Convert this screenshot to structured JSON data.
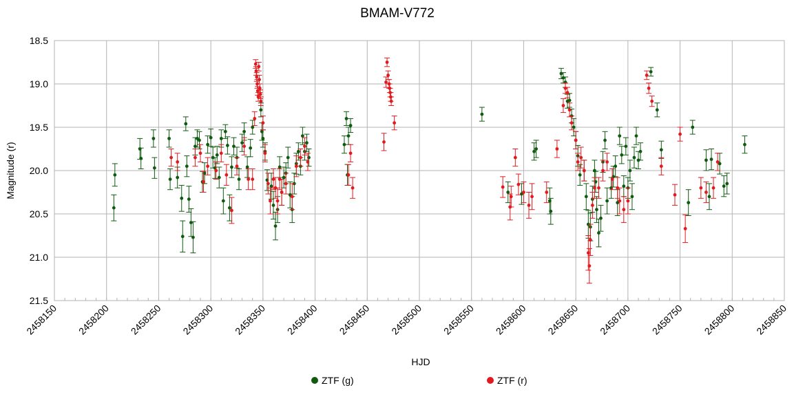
{
  "chart_data": {
    "type": "scatter",
    "title": "BMAM-V772",
    "xlabel": "HJD",
    "ylabel": "Magnitude (r)",
    "xlim": [
      2458150,
      2458850
    ],
    "ylim": [
      18.5,
      21.5
    ],
    "y_inverted": true,
    "grid": true,
    "legend_position": "bottom",
    "x_ticks": [
      "2458150",
      "2458200",
      "2458250",
      "2458300",
      "2458350",
      "2458400",
      "2458450",
      "2458500",
      "2458550",
      "2458600",
      "2458650",
      "2458700",
      "2458750",
      "2458800",
      "2458850"
    ],
    "y_ticks": [
      "18.5",
      "19.0",
      "19.5",
      "20.0",
      "20.5",
      "21.0",
      "21.5"
    ],
    "series": [
      {
        "name": "ZTF (g)",
        "color": "#0f5a0f",
        "points": [
          [
            2458207,
            20.43,
            0.15
          ],
          [
            2458208,
            20.05,
            0.13
          ],
          [
            2458232,
            19.75,
            0.12
          ],
          [
            2458233,
            19.86,
            0.12
          ],
          [
            2458245,
            19.63,
            0.1
          ],
          [
            2458246,
            19.97,
            0.12
          ],
          [
            2458260,
            19.63,
            0.1
          ],
          [
            2458261,
            20.1,
            0.12
          ],
          [
            2458268,
            20.08,
            0.12
          ],
          [
            2458272,
            20.32,
            0.15
          ],
          [
            2458273,
            20.76,
            0.18
          ],
          [
            2458276,
            19.46,
            0.08
          ],
          [
            2458277,
            19.95,
            0.12
          ],
          [
            2458279,
            20.33,
            0.15
          ],
          [
            2458281,
            20.6,
            0.16
          ],
          [
            2458283,
            20.77,
            0.18
          ],
          [
            2458285,
            19.72,
            0.1
          ],
          [
            2458287,
            19.63,
            0.1
          ],
          [
            2458289,
            19.65,
            0.1
          ],
          [
            2458292,
            20.13,
            0.12
          ],
          [
            2458294,
            20.03,
            0.12
          ],
          [
            2458297,
            19.7,
            0.1
          ],
          [
            2458300,
            19.62,
            0.1
          ],
          [
            2458302,
            19.85,
            0.12
          ],
          [
            2458304,
            19.97,
            0.12
          ],
          [
            2458306,
            19.82,
            0.1
          ],
          [
            2458308,
            20.08,
            0.12
          ],
          [
            2458310,
            19.63,
            0.1
          ],
          [
            2458312,
            20.35,
            0.15
          ],
          [
            2458314,
            19.55,
            0.08
          ],
          [
            2458316,
            19.71,
            0.1
          ],
          [
            2458318,
            20.43,
            0.15
          ],
          [
            2458320,
            19.96,
            0.12
          ],
          [
            2458322,
            19.72,
            0.1
          ],
          [
            2458325,
            19.85,
            0.12
          ],
          [
            2458327,
            20.1,
            0.12
          ],
          [
            2458330,
            19.68,
            0.1
          ],
          [
            2458332,
            19.55,
            0.1
          ],
          [
            2458335,
            19.96,
            0.12
          ],
          [
            2458338,
            19.74,
            0.1
          ],
          [
            2458340,
            19.5,
            0.08
          ],
          [
            2458348,
            19.3,
            0.08
          ],
          [
            2458349,
            19.55,
            0.1
          ],
          [
            2458350,
            19.63,
            0.1
          ],
          [
            2458352,
            19.78,
            0.1
          ],
          [
            2458354,
            20.11,
            0.12
          ],
          [
            2458358,
            20.18,
            0.15
          ],
          [
            2458360,
            20.4,
            0.16
          ],
          [
            2458362,
            20.64,
            0.16
          ],
          [
            2458364,
            20.45,
            0.15
          ],
          [
            2458366,
            19.96,
            0.12
          ],
          [
            2458368,
            20.25,
            0.15
          ],
          [
            2458370,
            20.08,
            0.12
          ],
          [
            2458372,
            20.03,
            0.12
          ],
          [
            2458374,
            19.85,
            0.12
          ],
          [
            2458376,
            20.28,
            0.15
          ],
          [
            2458378,
            20.45,
            0.15
          ],
          [
            2458380,
            20.15,
            0.12
          ],
          [
            2458382,
            19.92,
            0.12
          ],
          [
            2458384,
            19.78,
            0.1
          ],
          [
            2458386,
            19.95,
            0.1
          ],
          [
            2458388,
            19.6,
            0.1
          ],
          [
            2458390,
            19.78,
            0.1
          ],
          [
            2458392,
            19.68,
            0.1
          ],
          [
            2458394,
            19.85,
            0.1
          ],
          [
            2458428,
            19.7,
            0.1
          ],
          [
            2458430,
            19.4,
            0.08
          ],
          [
            2458431,
            20.05,
            0.12
          ],
          [
            2458432,
            19.6,
            0.1
          ],
          [
            2458434,
            19.48,
            0.08
          ],
          [
            2458560,
            19.35,
            0.08
          ],
          [
            2458585,
            20.25,
            0.12
          ],
          [
            2458598,
            20.27,
            0.12
          ],
          [
            2458610,
            19.78,
            0.1
          ],
          [
            2458612,
            19.75,
            0.1
          ],
          [
            2458625,
            20.35,
            0.15
          ],
          [
            2458626,
            20.47,
            0.15
          ],
          [
            2458636,
            18.88,
            0.06
          ],
          [
            2458638,
            18.93,
            0.06
          ],
          [
            2458640,
            18.98,
            0.06
          ],
          [
            2458642,
            19.2,
            0.08
          ],
          [
            2458644,
            19.19,
            0.08
          ],
          [
            2458646,
            19.37,
            0.08
          ],
          [
            2458648,
            19.5,
            0.1
          ],
          [
            2458650,
            19.65,
            0.1
          ],
          [
            2458652,
            19.83,
            0.12
          ],
          [
            2458654,
            20.05,
            0.12
          ],
          [
            2458658,
            20.0,
            0.12
          ],
          [
            2458660,
            20.3,
            0.15
          ],
          [
            2458662,
            20.62,
            0.16
          ],
          [
            2458664,
            20.65,
            0.16
          ],
          [
            2458666,
            20.33,
            0.15
          ],
          [
            2458668,
            20.0,
            0.12
          ],
          [
            2458669,
            20.13,
            0.12
          ],
          [
            2458670,
            20.45,
            0.15
          ],
          [
            2458672,
            20.72,
            0.16
          ],
          [
            2458674,
            20.55,
            0.15
          ],
          [
            2458676,
            19.9,
            0.12
          ],
          [
            2458678,
            19.65,
            0.1
          ],
          [
            2458680,
            20.35,
            0.15
          ],
          [
            2458684,
            20.2,
            0.12
          ],
          [
            2458686,
            20.07,
            0.12
          ],
          [
            2458688,
            19.95,
            0.12
          ],
          [
            2458690,
            20.37,
            0.15
          ],
          [
            2458692,
            19.6,
            0.1
          ],
          [
            2458694,
            19.82,
            0.1
          ],
          [
            2458696,
            20.18,
            0.12
          ],
          [
            2458698,
            19.72,
            0.1
          ],
          [
            2458700,
            20.2,
            0.12
          ],
          [
            2458702,
            20.0,
            0.12
          ],
          [
            2458704,
            20.3,
            0.15
          ],
          [
            2458706,
            19.85,
            0.12
          ],
          [
            2458708,
            19.6,
            0.1
          ],
          [
            2458710,
            19.88,
            0.1
          ],
          [
            2458712,
            19.78,
            0.1
          ],
          [
            2458722,
            18.86,
            0.05
          ],
          [
            2458728,
            19.3,
            0.08
          ],
          [
            2458732,
            19.76,
            0.1
          ],
          [
            2458758,
            20.37,
            0.15
          ],
          [
            2458762,
            19.5,
            0.08
          ],
          [
            2458775,
            19.88,
            0.12
          ],
          [
            2458778,
            20.3,
            0.15
          ],
          [
            2458780,
            19.87,
            0.12
          ],
          [
            2458788,
            19.92,
            0.12
          ],
          [
            2458792,
            20.18,
            0.12
          ],
          [
            2458795,
            20.15,
            0.12
          ],
          [
            2458812,
            19.7,
            0.1
          ]
        ]
      },
      {
        "name": "ZTF (r)",
        "color": "#e01a1f",
        "points": [
          [
            2458262,
            19.85,
            0.1
          ],
          [
            2458268,
            19.9,
            0.1
          ],
          [
            2458285,
            19.85,
            0.1
          ],
          [
            2458290,
            19.8,
            0.1
          ],
          [
            2458293,
            20.13,
            0.12
          ],
          [
            2458297,
            19.95,
            0.1
          ],
          [
            2458305,
            20.0,
            0.1
          ],
          [
            2458310,
            19.8,
            0.1
          ],
          [
            2458315,
            20.05,
            0.12
          ],
          [
            2458320,
            20.46,
            0.15
          ],
          [
            2458325,
            19.95,
            0.1
          ],
          [
            2458332,
            19.72,
            0.1
          ],
          [
            2458336,
            20.1,
            0.12
          ],
          [
            2458340,
            20.1,
            0.12
          ],
          [
            2458342,
            19.4,
            0.08
          ],
          [
            2458343,
            18.77,
            0.05
          ],
          [
            2458343.5,
            18.85,
            0.05
          ],
          [
            2458344,
            18.92,
            0.05
          ],
          [
            2458344.5,
            19.0,
            0.05
          ],
          [
            2458345,
            19.08,
            0.05
          ],
          [
            2458345.5,
            19.15,
            0.05
          ],
          [
            2458346,
            18.8,
            0.05
          ],
          [
            2458346.5,
            18.95,
            0.05
          ],
          [
            2458347,
            19.05,
            0.05
          ],
          [
            2458347.5,
            19.12,
            0.05
          ],
          [
            2458348,
            19.2,
            0.05
          ],
          [
            2458350,
            19.45,
            0.08
          ],
          [
            2458352,
            19.8,
            0.1
          ],
          [
            2458355,
            20.15,
            0.12
          ],
          [
            2458357,
            20.35,
            0.15
          ],
          [
            2458360,
            20.1,
            0.12
          ],
          [
            2458362,
            20.2,
            0.12
          ],
          [
            2458364,
            20.35,
            0.15
          ],
          [
            2458366,
            20.1,
            0.12
          ],
          [
            2458368,
            20.25,
            0.15
          ],
          [
            2458372,
            20.15,
            0.12
          ],
          [
            2458378,
            20.3,
            0.15
          ],
          [
            2458382,
            19.95,
            0.12
          ],
          [
            2458386,
            19.85,
            0.1
          ],
          [
            2458390,
            19.72,
            0.1
          ],
          [
            2458393,
            19.9,
            0.1
          ],
          [
            2458432,
            20.05,
            0.12
          ],
          [
            2458434,
            19.8,
            0.1
          ],
          [
            2458436,
            20.2,
            0.12
          ],
          [
            2458466,
            19.67,
            0.1
          ],
          [
            2458468,
            18.98,
            0.06
          ],
          [
            2458469,
            18.75,
            0.05
          ],
          [
            2458470,
            18.9,
            0.05
          ],
          [
            2458471,
            19.0,
            0.05
          ],
          [
            2458471.5,
            19.05,
            0.05
          ],
          [
            2458472,
            19.1,
            0.05
          ],
          [
            2458472.5,
            19.15,
            0.05
          ],
          [
            2458473,
            19.2,
            0.05
          ],
          [
            2458476,
            19.45,
            0.08
          ],
          [
            2458580,
            20.19,
            0.12
          ],
          [
            2458587,
            20.42,
            0.15
          ],
          [
            2458588,
            20.3,
            0.12
          ],
          [
            2458592,
            19.85,
            0.1
          ],
          [
            2458595,
            20.16,
            0.12
          ],
          [
            2458600,
            20.25,
            0.12
          ],
          [
            2458605,
            20.4,
            0.15
          ],
          [
            2458608,
            20.3,
            0.15
          ],
          [
            2458622,
            20.25,
            0.12
          ],
          [
            2458632,
            19.75,
            0.1
          ],
          [
            2458638,
            19.25,
            0.08
          ],
          [
            2458640,
            19.05,
            0.06
          ],
          [
            2458642,
            19.1,
            0.06
          ],
          [
            2458644,
            19.3,
            0.08
          ],
          [
            2458646,
            19.45,
            0.08
          ],
          [
            2458650,
            19.65,
            0.1
          ],
          [
            2458652,
            19.9,
            0.1
          ],
          [
            2458655,
            19.85,
            0.12
          ],
          [
            2458658,
            20.0,
            0.12
          ],
          [
            2458662,
            20.95,
            0.2
          ],
          [
            2458663,
            21.1,
            0.2
          ],
          [
            2458664,
            20.8,
            0.18
          ],
          [
            2458666,
            20.4,
            0.15
          ],
          [
            2458668,
            20.2,
            0.12
          ],
          [
            2458672,
            20.2,
            0.12
          ],
          [
            2458676,
            20.0,
            0.12
          ],
          [
            2458680,
            19.9,
            0.1
          ],
          [
            2458685,
            20.1,
            0.12
          ],
          [
            2458690,
            20.2,
            0.12
          ],
          [
            2458692,
            20.35,
            0.15
          ],
          [
            2458696,
            20.45,
            0.15
          ],
          [
            2458700,
            20.35,
            0.15
          ],
          [
            2458718,
            18.9,
            0.05
          ],
          [
            2458720,
            19.05,
            0.06
          ],
          [
            2458723,
            19.2,
            0.06
          ],
          [
            2458732,
            19.95,
            0.1
          ],
          [
            2458745,
            20.28,
            0.12
          ],
          [
            2458750,
            19.58,
            0.08
          ],
          [
            2458755,
            20.67,
            0.16
          ],
          [
            2458770,
            20.2,
            0.12
          ],
          [
            2458775,
            20.25,
            0.12
          ],
          [
            2458782,
            20.2,
            0.12
          ],
          [
            2458786,
            19.9,
            0.1
          ]
        ]
      }
    ]
  }
}
